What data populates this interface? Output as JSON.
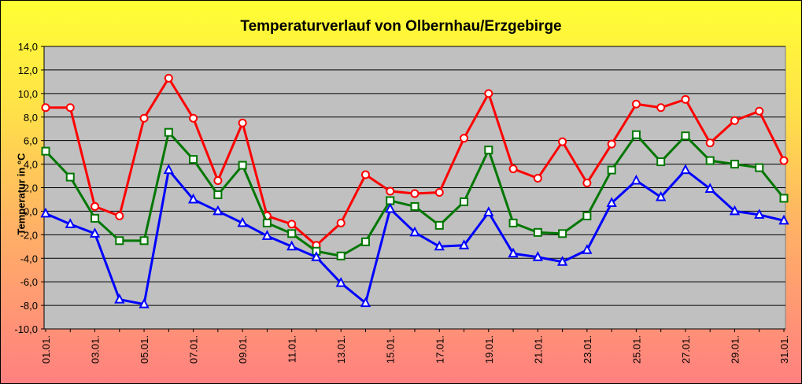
{
  "chart_data": {
    "type": "line",
    "title": "Temperaturverlauf von Olbernhau/Erzgebirge",
    "xlabel": "",
    "ylabel": "Temperatur in °C",
    "ylim": [
      -10,
      14
    ],
    "yticks": [
      "14,0",
      "12,0",
      "10,0",
      "8,0",
      "6,0",
      "4,0",
      "2,0",
      "0,0",
      "-2,0",
      "-4,0",
      "-6,0",
      "-8,0",
      "-10,0"
    ],
    "ytick_values": [
      14,
      12,
      10,
      8,
      6,
      4,
      2,
      0,
      -2,
      -4,
      -6,
      -8,
      -10
    ],
    "grid": true,
    "x": [
      "01.01.",
      "02.01.",
      "03.01.",
      "04.01.",
      "05.01.",
      "06.01.",
      "07.01.",
      "08.01.",
      "09.01.",
      "10.01.",
      "11.01.",
      "12.01.",
      "13.01.",
      "14.01.",
      "15.01.",
      "16.01.",
      "17.01.",
      "18.01.",
      "19.01.",
      "20.01.",
      "21.01.",
      "22.01.",
      "23.01.",
      "24.01.",
      "25.01.",
      "26.01.",
      "27.01.",
      "28.01.",
      "29.01.",
      "30.01.",
      "31.01."
    ],
    "xtick_labels": [
      "01.01.",
      "",
      "03.01.",
      "",
      "05.01.",
      "",
      "07.01.",
      "",
      "09.01.",
      "",
      "11.01.",
      "",
      "13.01.",
      "",
      "15.01.",
      "",
      "17.01.",
      "",
      "19.01.",
      "",
      "21.01.",
      "",
      "23.01.",
      "",
      "25.01.",
      "",
      "27.01.",
      "",
      "29.01.",
      "",
      "31.01."
    ],
    "series": [
      {
        "color": "#ff0000",
        "marker": "circle",
        "values": [
          8.8,
          8.8,
          0.4,
          -0.4,
          7.9,
          11.3,
          7.9,
          2.6,
          7.5,
          -0.4,
          -1.1,
          -2.9,
          -1.0,
          3.1,
          1.7,
          1.5,
          1.6,
          6.2,
          10.0,
          3.6,
          2.8,
          5.9,
          2.4,
          5.7,
          9.1,
          8.8,
          9.5,
          5.8,
          7.7,
          8.5,
          4.3
        ]
      },
      {
        "color": "#007700",
        "marker": "square",
        "values": [
          5.1,
          2.9,
          -0.6,
          -2.5,
          -2.5,
          6.7,
          4.4,
          1.4,
          3.9,
          -1.0,
          -1.9,
          -3.4,
          -3.8,
          -2.6,
          0.9,
          0.4,
          -1.2,
          0.8,
          5.2,
          -1.0,
          -1.8,
          -1.9,
          -0.4,
          3.5,
          6.5,
          4.2,
          6.4,
          4.3,
          4.0,
          3.7,
          1.1
        ]
      },
      {
        "color": "#0000ff",
        "marker": "triangle",
        "values": [
          -0.2,
          -1.1,
          -1.9,
          -7.5,
          -7.9,
          3.5,
          1.0,
          0.0,
          -1.0,
          -2.1,
          -3.0,
          -3.9,
          -6.1,
          -7.8,
          0.2,
          -1.8,
          -3.0,
          -2.9,
          -0.1,
          -3.6,
          -3.9,
          -4.3,
          -3.3,
          0.7,
          2.6,
          1.2,
          3.5,
          1.9,
          0.0,
          -0.3,
          -0.8
        ]
      }
    ]
  }
}
